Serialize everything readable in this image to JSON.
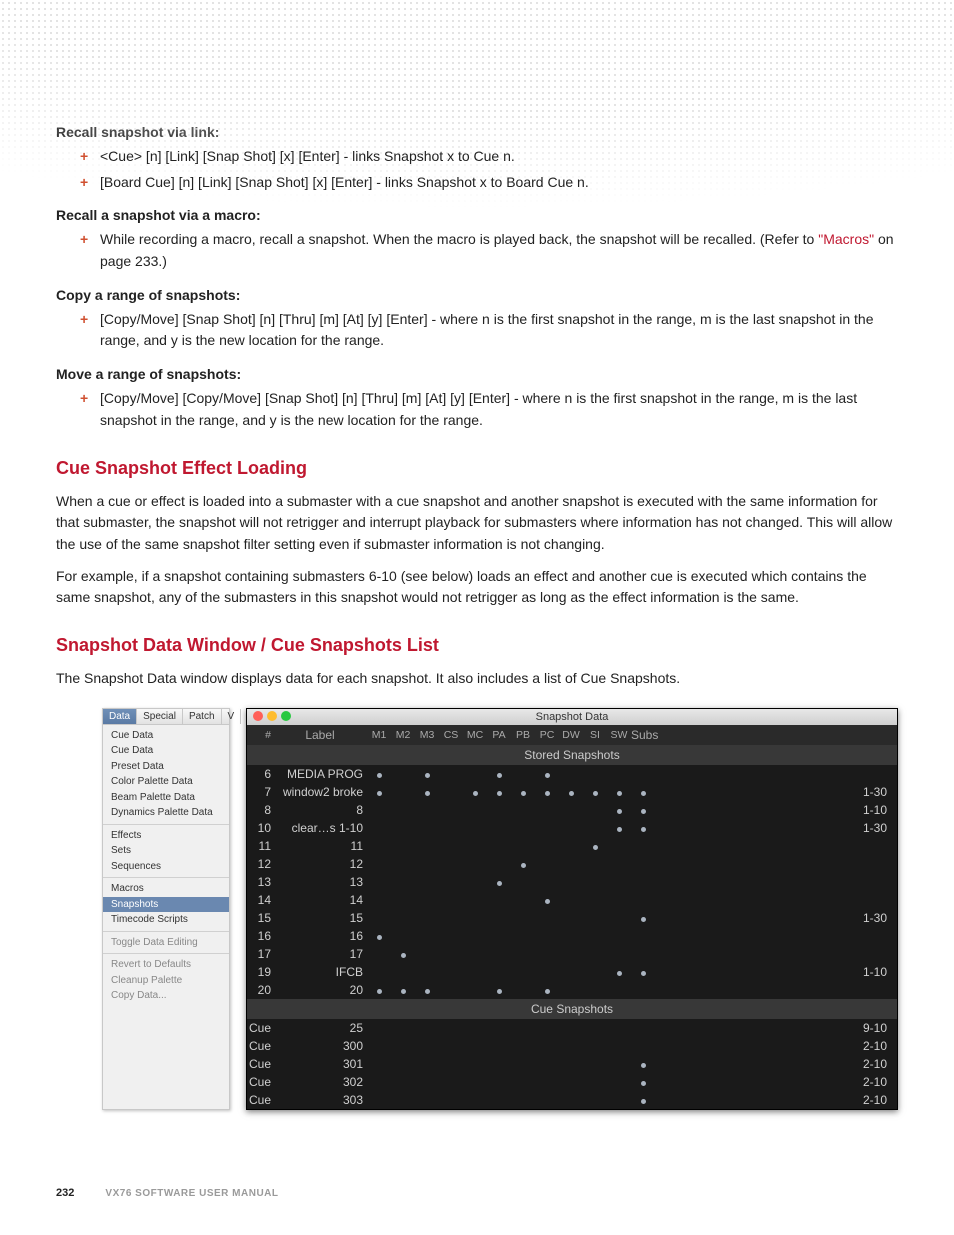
{
  "sections": [
    {
      "label": "Recall snapshot via link:",
      "items": [
        "<Cue> [n] [Link] [Snap Shot] [x] [Enter] - links Snapshot x to Cue n.",
        "[Board Cue] [n] [Link] [Snap Shot] [x] [Enter] - links Snapshot x to Board Cue n."
      ]
    },
    {
      "label": "Recall a snapshot via a macro:",
      "items": [
        "While recording a macro, recall a snapshot. When the macro is played back, the snapshot will be recalled. (Refer to \"Macros\" on page 233.)"
      ],
      "link_in": 0,
      "link_text": "\"Macros\""
    },
    {
      "label": "Copy a range of snapshots:",
      "items": [
        "[Copy/Move] [Snap Shot] [n] [Thru] [m] [At] [y] [Enter] - where n is the first snapshot in the range, m is the last snapshot in the range, and y is the new location for the range."
      ]
    },
    {
      "label": "Move a range of snapshots:",
      "items": [
        "[Copy/Move] [Copy/Move] [Snap Shot] [n] [Thru] [m] [At] [y] [Enter] - where n is the first snapshot in the range, m is the last snapshot in the range, and y is the new location for the range."
      ]
    }
  ],
  "h_cue_loading": "Cue Snapshot Effect Loading",
  "p_cue_loading_1": "When a cue or effect is loaded into a submaster with a cue snapshot and another snapshot is executed with the same information for that submaster, the snapshot will not retrigger and interrupt playback for submasters where information has not changed. This will allow the use of the same snapshot filter setting even if submaster information is not changing.",
  "p_cue_loading_2": "For example, if a snapshot containing submasters 6-10 (see below) loads an effect and another cue is executed which contains the same snapshot, any of the submasters in this snapshot would not retrigger as long as the effect information is the same.",
  "h_data_window": "Snapshot Data Window / Cue Snapshots List",
  "p_data_window": "The Snapshot Data window displays data for each snapshot. It also includes a list of Cue Snapshots.",
  "menu": {
    "tabs": [
      "Data",
      "Special",
      "Patch",
      "V"
    ],
    "active_tab": 0,
    "groups": [
      [
        "Cue Data",
        "Cue Data",
        "Preset Data",
        "Color Palette Data",
        "Beam Palette Data",
        "Dynamics Palette Data"
      ],
      [
        "Effects",
        "Sets",
        "Sequences"
      ],
      [
        "Macros",
        "Snapshots",
        "Timecode Scripts"
      ],
      [
        "Toggle Data Editing"
      ],
      [
        "Revert to Defaults",
        "Cleanup Palette",
        "Copy Data..."
      ]
    ],
    "selected": "Snapshots",
    "dim_groups": [
      3,
      4
    ]
  },
  "window": {
    "title": "Snapshot Data",
    "cols": [
      "#",
      "Label",
      "M1",
      "M2",
      "M3",
      "CS",
      "MC",
      "PA",
      "PB",
      "PC",
      "DW",
      "SI",
      "SW",
      "Subs"
    ],
    "section1": "Stored Snapshots",
    "stored": [
      {
        "n": "6",
        "label": "MEDIA PROG",
        "d": [
          1,
          0,
          1,
          0,
          0,
          1,
          0,
          1,
          0,
          0,
          0,
          0
        ],
        "subs": ""
      },
      {
        "n": "7",
        "label": "window2 broke",
        "d": [
          1,
          0,
          1,
          0,
          1,
          1,
          1,
          1,
          1,
          1,
          1,
          1
        ],
        "subs": "1-30"
      },
      {
        "n": "8",
        "label": "8",
        "d": [
          0,
          0,
          0,
          0,
          0,
          0,
          0,
          0,
          0,
          0,
          1,
          1
        ],
        "subs": "1-10"
      },
      {
        "n": "10",
        "label": "clear…s 1-10",
        "d": [
          0,
          0,
          0,
          0,
          0,
          0,
          0,
          0,
          0,
          0,
          1,
          1
        ],
        "subs": "1-30"
      },
      {
        "n": "11",
        "label": "11",
        "d": [
          0,
          0,
          0,
          0,
          0,
          0,
          0,
          0,
          0,
          1,
          0,
          0
        ],
        "subs": ""
      },
      {
        "n": "12",
        "label": "12",
        "d": [
          0,
          0,
          0,
          0,
          0,
          0,
          1,
          0,
          0,
          0,
          0,
          0
        ],
        "subs": ""
      },
      {
        "n": "13",
        "label": "13",
        "d": [
          0,
          0,
          0,
          0,
          0,
          1,
          0,
          0,
          0,
          0,
          0,
          0
        ],
        "subs": ""
      },
      {
        "n": "14",
        "label": "14",
        "d": [
          0,
          0,
          0,
          0,
          0,
          0,
          0,
          1,
          0,
          0,
          0,
          0
        ],
        "subs": ""
      },
      {
        "n": "15",
        "label": "15",
        "d": [
          0,
          0,
          0,
          0,
          0,
          0,
          0,
          0,
          0,
          0,
          0,
          1
        ],
        "subs": "1-30"
      },
      {
        "n": "16",
        "label": "16",
        "d": [
          1,
          0,
          0,
          0,
          0,
          0,
          0,
          0,
          0,
          0,
          0,
          0
        ],
        "subs": ""
      },
      {
        "n": "17",
        "label": "17",
        "d": [
          0,
          1,
          0,
          0,
          0,
          0,
          0,
          0,
          0,
          0,
          0,
          0
        ],
        "subs": ""
      },
      {
        "n": "19",
        "label": "IFCB",
        "d": [
          0,
          0,
          0,
          0,
          0,
          0,
          0,
          0,
          0,
          0,
          1,
          1
        ],
        "subs": "1-10"
      },
      {
        "n": "20",
        "label": "20",
        "d": [
          1,
          1,
          1,
          0,
          0,
          1,
          0,
          1,
          0,
          0,
          0,
          0
        ],
        "subs": ""
      }
    ],
    "section2": "Cue Snapshots",
    "cue": [
      {
        "n": "Cue",
        "label": "25",
        "d": [
          0,
          0,
          0,
          0,
          0,
          0,
          0,
          0,
          0,
          0,
          0,
          0
        ],
        "subs": "9-10"
      },
      {
        "n": "Cue",
        "label": "300",
        "d": [
          0,
          0,
          0,
          0,
          0,
          0,
          0,
          0,
          0,
          0,
          0,
          0
        ],
        "subs": "2-10"
      },
      {
        "n": "Cue",
        "label": "301",
        "d": [
          0,
          0,
          0,
          0,
          0,
          0,
          0,
          0,
          0,
          0,
          0,
          1
        ],
        "subs": "2-10"
      },
      {
        "n": "Cue",
        "label": "302",
        "d": [
          0,
          0,
          0,
          0,
          0,
          0,
          0,
          0,
          0,
          0,
          0,
          1
        ],
        "subs": "2-10"
      },
      {
        "n": "Cue",
        "label": "303",
        "d": [
          0,
          0,
          0,
          0,
          0,
          0,
          0,
          0,
          0,
          0,
          0,
          1
        ],
        "subs": "2-10"
      }
    ]
  },
  "footer": {
    "page": "232",
    "manual": "VX76 SOFTWARE USER MANUAL"
  }
}
